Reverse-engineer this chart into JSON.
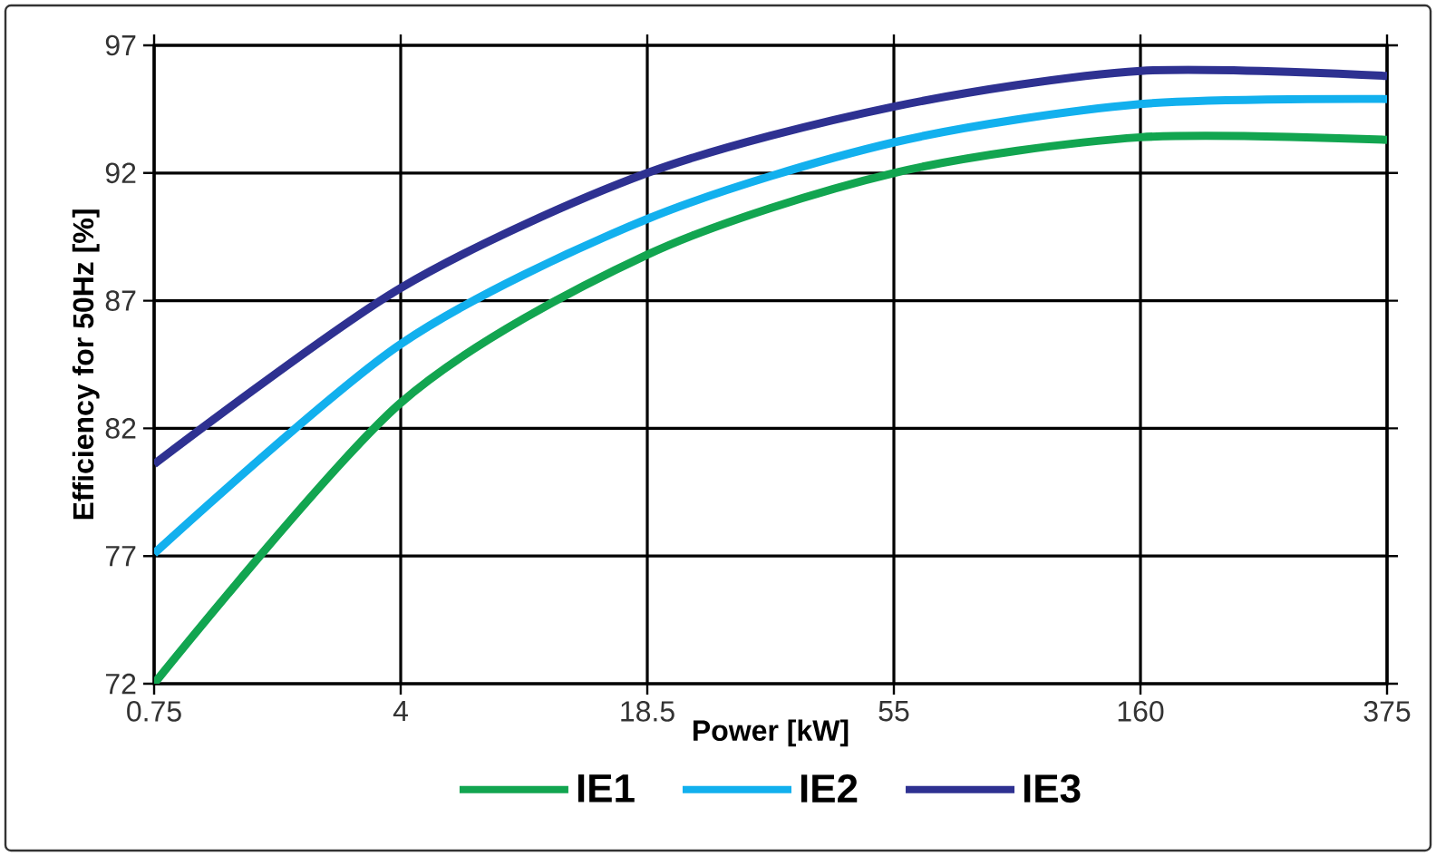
{
  "chart_data": {
    "type": "line",
    "xlabel": "Power [kW]",
    "ylabel": "Efficiency for 50Hz [%]",
    "categories": [
      "0.75",
      "4",
      "18.5",
      "55",
      "160",
      "375"
    ],
    "series": [
      {
        "name": "IE1",
        "color": "#12a550",
        "values": [
          72.0,
          83.0,
          88.8,
          92.0,
          93.4,
          93.3
        ]
      },
      {
        "name": "IE2",
        "color": "#12b0ee",
        "values": [
          77.1,
          85.3,
          90.2,
          93.2,
          94.7,
          94.9
        ]
      },
      {
        "name": "IE3",
        "color": "#2e3191",
        "values": [
          80.6,
          87.5,
          92.0,
          94.6,
          96.0,
          95.8
        ]
      }
    ],
    "ylim": [
      72,
      97
    ],
    "yticks": [
      72,
      77,
      82,
      87,
      92,
      97
    ],
    "grid": true,
    "legend": "bottom",
    "marker": "none",
    "line_style": "solid"
  }
}
